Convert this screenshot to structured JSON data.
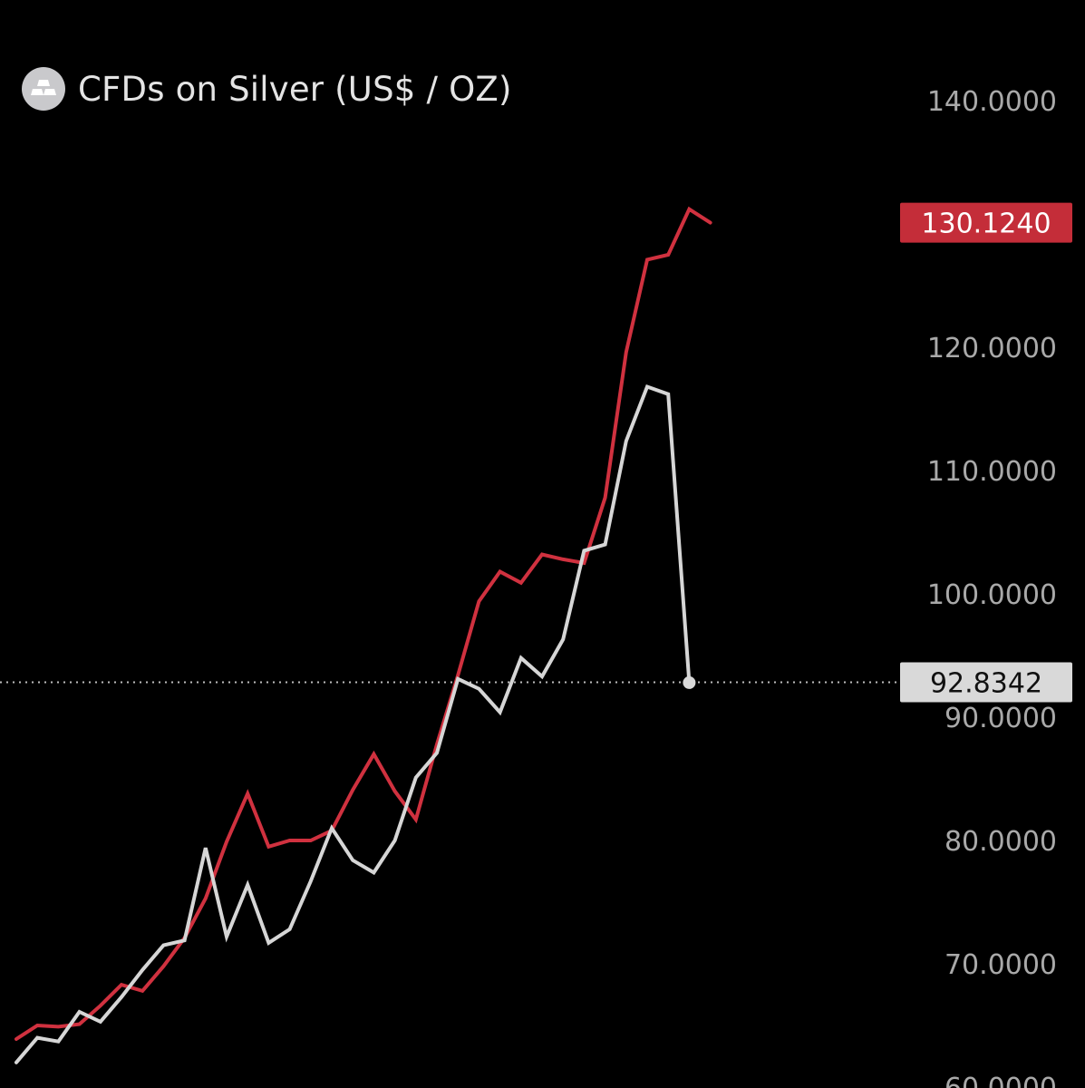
{
  "header": {
    "title": "CFDs on Silver (US$ / OZ)",
    "icon": "silver-bars-icon"
  },
  "chart_data": {
    "type": "line",
    "title": "CFDs on Silver (US$ / OZ)",
    "xlabel": "",
    "ylabel": "",
    "ylim": [
      60,
      140
    ],
    "grid": false,
    "y_ticks": [
      {
        "value": 140,
        "label": "140.0000"
      },
      {
        "value": 120,
        "label": "120.0000"
      },
      {
        "value": 110,
        "label": "110.0000"
      },
      {
        "value": 100,
        "label": "100.0000"
      },
      {
        "value": 90,
        "label": "90.0000"
      },
      {
        "value": 80,
        "label": "80.0000"
      },
      {
        "value": 70,
        "label": "70.0000"
      },
      {
        "value": 60,
        "label": "60.0000"
      }
    ],
    "series": [
      {
        "color": "#d0313f",
        "last_value_label": "130.1240",
        "values": [
          63.9,
          65.0,
          64.9,
          65.1,
          66.6,
          68.3,
          67.8,
          69.8,
          72.1,
          75.3,
          79.9,
          83.8,
          79.5,
          80.0,
          80.0,
          80.8,
          84.1,
          87.0,
          84.0,
          81.7,
          87.8,
          93.4,
          99.4,
          101.8,
          100.9,
          103.2,
          102.8,
          102.5,
          107.8,
          119.6,
          127.1,
          127.5,
          131.2,
          130.1
        ]
      },
      {
        "color": "#d6d6d6",
        "last_value_label": "92.8342",
        "values": [
          62.0,
          64.0,
          63.7,
          66.1,
          65.3,
          67.3,
          69.5,
          71.5,
          71.9,
          79.4,
          72.2,
          76.4,
          71.7,
          72.8,
          76.7,
          81.0,
          78.4,
          77.4,
          80.0,
          85.1,
          87.1,
          93.1,
          92.3,
          90.4,
          94.8,
          93.3,
          96.3,
          103.5,
          104.0,
          112.4,
          116.8,
          116.2,
          92.8
        ]
      }
    ],
    "reference_line": {
      "value": 92.8342,
      "label": "92.8342",
      "style": "dotted"
    },
    "colors": {
      "background": "#000000",
      "red_series": "#d0313f",
      "white_series": "#d6d6d6",
      "tick_text": "#a9a9a9",
      "red_badge_bg": "#c42d39",
      "red_badge_text": "#ffffff",
      "white_badge_bg": "#d9d9d9",
      "white_badge_text": "#111111"
    }
  }
}
